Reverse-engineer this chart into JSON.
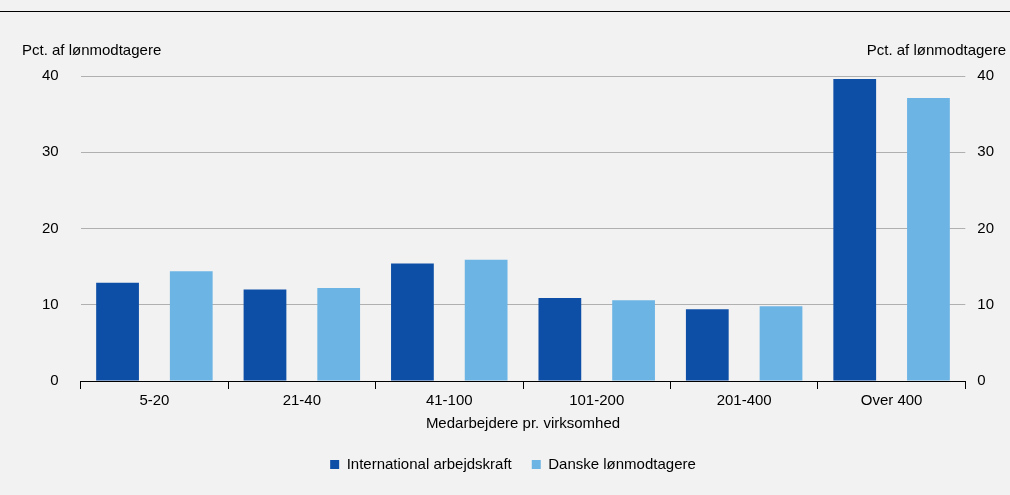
{
  "chart_data": {
    "type": "bar",
    "xlabel": "Medarbejdere pr. virksomhed",
    "ylabel": "Pct. af lønmodtagere",
    "y2label": "Pct. af lønmodtagere",
    "categories": [
      "5-20",
      "21-40",
      "41-100",
      "101-200",
      "201-400",
      "Over 400"
    ],
    "series": [
      {
        "name": "International arbejdskraft",
        "color": "#0d4ea6",
        "values": [
          12.9,
          12.0,
          15.4,
          10.9,
          9.4,
          39.6
        ]
      },
      {
        "name": "Danske lønmodtagere",
        "color": "#6cb4e4",
        "values": [
          14.4,
          12.2,
          15.9,
          10.6,
          9.8,
          37.1
        ]
      }
    ],
    "ylim": [
      0,
      40
    ],
    "yticks": [
      0,
      10,
      20,
      30,
      40
    ],
    "y2lim": [
      0,
      40
    ],
    "y2ticks": [
      0,
      10,
      20,
      30,
      40
    ],
    "grid": "y",
    "legend": "bottom"
  }
}
